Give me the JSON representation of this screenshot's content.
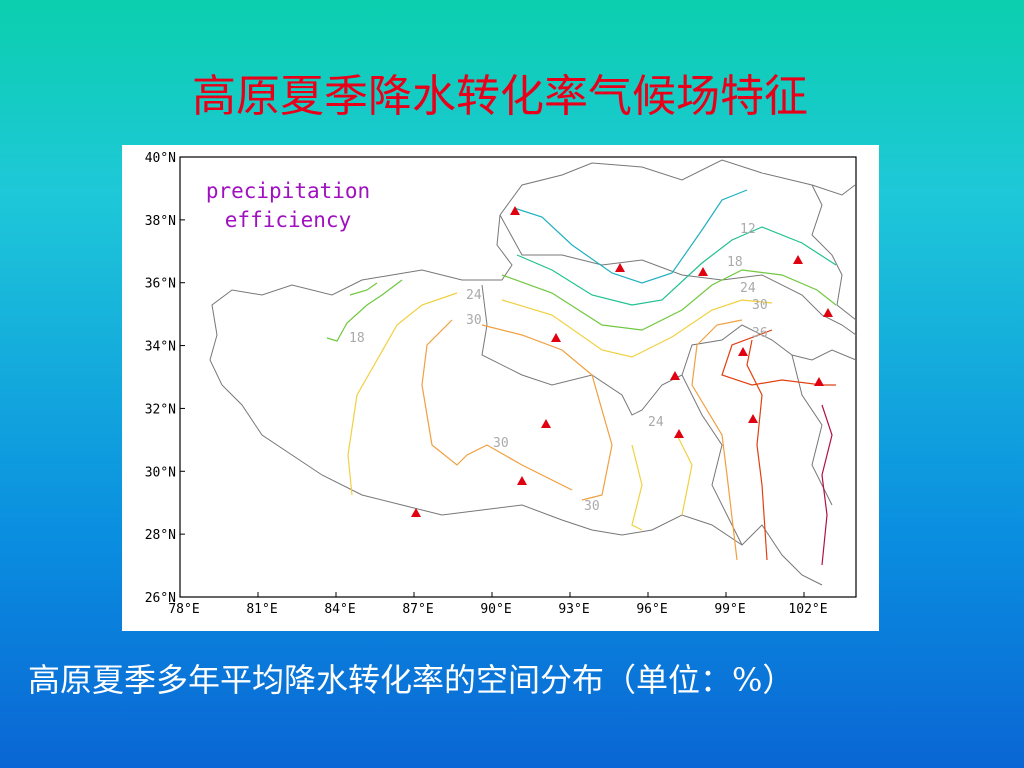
{
  "title": "高原夏季降水转化率气候场特征",
  "map": {
    "label": [
      "precipitation",
      "efficiency"
    ],
    "lat_ticks": [
      "40°N",
      "38°N",
      "36°N",
      "34°N",
      "32°N",
      "30°N",
      "28°N",
      "26°N"
    ],
    "lon_ticks": [
      "78°E",
      "81°E",
      "84°E",
      "87°E",
      "90°E",
      "93°E",
      "96°E",
      "99°E",
      "102°E"
    ],
    "contour_labels": [
      12,
      18,
      24,
      30,
      36,
      18,
      24,
      30,
      30,
      30,
      24
    ]
  },
  "caption": "高原夏季多年平均降水转化率的空间分布（单位：%）"
}
